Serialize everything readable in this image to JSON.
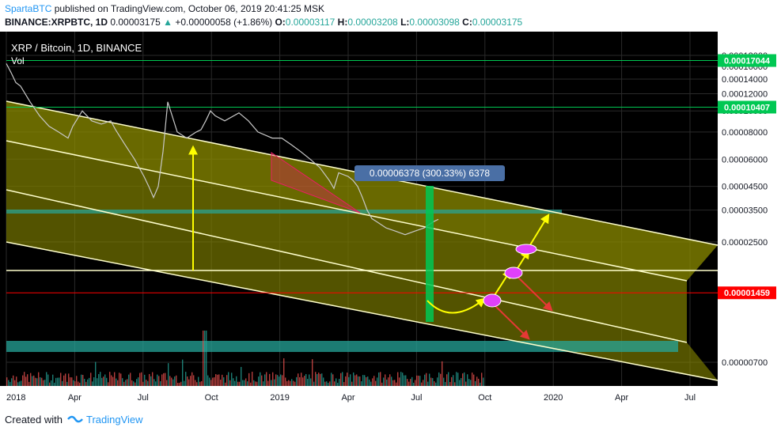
{
  "header": {
    "author": "SpartaBTC",
    "published_text": "published on TradingView.com, October 06, 2019 20:41:25 MSK",
    "symbol": "BINANCE:XRPBTC, 1D",
    "last": "0.00003175",
    "change": "+0.00000058 (+1.86%)",
    "o_label": "O:",
    "o_value": "0.00003117",
    "h_label": "H:",
    "h_value": "0.00003208",
    "l_label": "L:",
    "l_value": "0.00003098",
    "c_label": "C:",
    "c_value": "0.00003175"
  },
  "legend": {
    "title": "XRP / Bitcoin, 1D, BINANCE",
    "vol": "Vol"
  },
  "footer": {
    "created_with": "Created with",
    "brand": "TradingView"
  },
  "colors": {
    "channel_fill": "#9a9a00",
    "channel_line": "#ffffcc",
    "support_fill": "#26a69a",
    "up_arrow": "#ffff00",
    "down_arrow": "#e53935",
    "target_green": "#00c853",
    "resistance_line": "#4caf50",
    "price_red": "#ff0000",
    "marker_pink": "#e91e63"
  },
  "chart_data": {
    "type": "line",
    "log_scale": true,
    "y_ticks": [
      "0.00018000",
      "0.00016000",
      "0.00014000",
      "0.00012000",
      "0.00010000",
      "0.00008000",
      "0.00006000",
      "0.00004500",
      "0.00003500",
      "0.00002500",
      "0.00000700"
    ],
    "y_tick_values": [
      0.00018,
      0.00016,
      0.00014,
      0.00012,
      0.0001,
      8e-05,
      6e-05,
      4.5e-05,
      3.5e-05,
      2.5e-05,
      7e-06
    ],
    "x_ticks": [
      "2018",
      "Apr",
      "Jul",
      "Oct",
      "2019",
      "Apr",
      "Jul",
      "Oct",
      "2020",
      "Apr",
      "Jul"
    ],
    "price_labels": [
      {
        "text": "0.00017044",
        "value": 0.00017044,
        "color": "#00c853"
      },
      {
        "text": "0.00010407",
        "value": 0.00010407,
        "color": "#00c853"
      },
      {
        "text": "0.00001459",
        "value": 1.459e-05,
        "color": "#ff0000"
      }
    ],
    "measure_label": "0.00006378 (300.33%) 6378",
    "series": [
      {
        "values": [
          [
            0,
            0.000165
          ],
          [
            0.01,
            0.00015
          ],
          [
            0.02,
            0.000135
          ],
          [
            0.03,
            0.00013
          ],
          [
            0.05,
            0.00011
          ],
          [
            0.07,
            9.5e-05
          ],
          [
            0.09,
            8.5e-05
          ],
          [
            0.11,
            8e-05
          ],
          [
            0.13,
            7.5e-05
          ],
          [
            0.14,
            8.5e-05
          ],
          [
            0.16,
            0.0001
          ],
          [
            0.18,
            9e-05
          ],
          [
            0.2,
            8.7e-05
          ],
          [
            0.22,
            9e-05
          ],
          [
            0.23,
            8.2e-05
          ],
          [
            0.25,
            7e-05
          ],
          [
            0.27,
            6e-05
          ],
          [
            0.29,
            5e-05
          ],
          [
            0.3,
            4.5e-05
          ],
          [
            0.31,
            4e-05
          ],
          [
            0.32,
            4.5e-05
          ],
          [
            0.33,
            6.5e-05
          ],
          [
            0.34,
            0.00011
          ],
          [
            0.36,
            8e-05
          ],
          [
            0.38,
            7.5e-05
          ],
          [
            0.4,
            8e-05
          ],
          [
            0.41,
            8.2e-05
          ],
          [
            0.42,
            9e-05
          ],
          [
            0.43,
            0.0001
          ],
          [
            0.44,
            9.5e-05
          ],
          [
            0.46,
            9e-05
          ],
          [
            0.49,
            9.8e-05
          ],
          [
            0.51,
            9e-05
          ],
          [
            0.53,
            8e-05
          ],
          [
            0.56,
            7.5e-05
          ],
          [
            0.58,
            7.5e-05
          ],
          [
            0.6,
            7e-05
          ],
          [
            0.62,
            6.5e-05
          ],
          [
            0.64,
            6e-05
          ],
          [
            0.66,
            5.5e-05
          ],
          [
            0.68,
            4.8e-05
          ],
          [
            0.69,
            4.4e-05
          ],
          [
            0.7,
            5.2e-05
          ],
          [
            0.72,
            5e-05
          ],
          [
            0.73,
            4.8e-05
          ],
          [
            0.74,
            4.5e-05
          ],
          [
            0.75,
            4e-05
          ],
          [
            0.76,
            3.5e-05
          ],
          [
            0.77,
            3.2e-05
          ],
          [
            0.78,
            3.1e-05
          ],
          [
            0.8,
            2.9e-05
          ],
          [
            0.82,
            2.8e-05
          ],
          [
            0.84,
            2.7e-05
          ],
          [
            0.86,
            2.8e-05
          ],
          [
            0.88,
            2.9e-05
          ],
          [
            0.9,
            3.1e-05
          ],
          [
            0.91,
            3.175e-05
          ]
        ]
      }
    ]
  }
}
